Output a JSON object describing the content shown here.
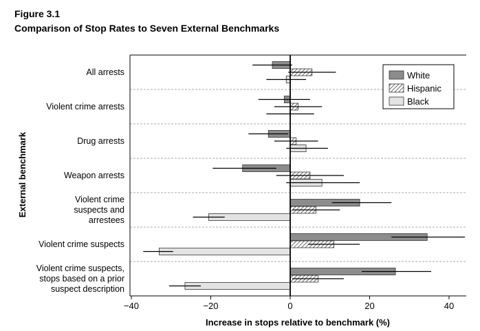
{
  "figure": {
    "label": "Figure 3.1",
    "title": "Comparison of Stop Rates to Seven External Benchmarks"
  },
  "chart_data": {
    "type": "bar",
    "orientation": "horizontal",
    "title": "Comparison of Stop Rates to Seven External Benchmarks",
    "xlabel": "Increase in stops relative to benchmark (%)",
    "ylabel": "External benchmark",
    "xlim": [
      -40,
      44
    ],
    "xticks": [
      -40,
      -20,
      0,
      20,
      40
    ],
    "xtick_labels": [
      "−40",
      "−20",
      "0",
      "20",
      "40"
    ],
    "legend_position": "top-right",
    "categories": [
      [
        "All arrests"
      ],
      [
        "Violent crime arrests"
      ],
      [
        "Drug arrests"
      ],
      [
        "Weapon arrests"
      ],
      [
        "Violent crime",
        "suspects and",
        "arrestees"
      ],
      [
        "Violent crime suspects"
      ],
      [
        "Violent crime suspects,",
        "stops based on a prior",
        "suspect description"
      ]
    ],
    "series": [
      {
        "name": "White",
        "color": "#8c8c8c",
        "pattern": "solid",
        "values": [
          -4.5,
          -1.5,
          -5.5,
          -12,
          17.5,
          34.5,
          26.5
        ],
        "ci_low": [
          -9.5,
          -8,
          -10.5,
          -19.5,
          10.5,
          25.5,
          18
        ],
        "ci_high": [
          0.5,
          5,
          -0.5,
          -3.5,
          25.5,
          44,
          35.5
        ]
      },
      {
        "name": "Hispanic",
        "color": "#ffffff",
        "pattern": "hatch",
        "values": [
          5.5,
          2,
          1.5,
          5,
          6.5,
          11,
          7
        ],
        "ci_low": [
          -0.5,
          -4,
          -4,
          -3.5,
          0.5,
          4.5,
          0.5
        ],
        "ci_high": [
          11.5,
          8,
          7,
          13.5,
          12.5,
          17.5,
          13.5
        ]
      },
      {
        "name": "Black",
        "color": "#e3e3e3",
        "pattern": "solid",
        "values": [
          -1,
          0,
          4,
          8,
          -20.5,
          -33,
          -26.5
        ],
        "ci_low": [
          -6,
          -6,
          -1,
          -1,
          -24.5,
          -37,
          -30.5
        ],
        "ci_high": [
          4,
          6,
          9.5,
          17.5,
          -16.5,
          -29.5,
          -22.5
        ]
      }
    ]
  }
}
